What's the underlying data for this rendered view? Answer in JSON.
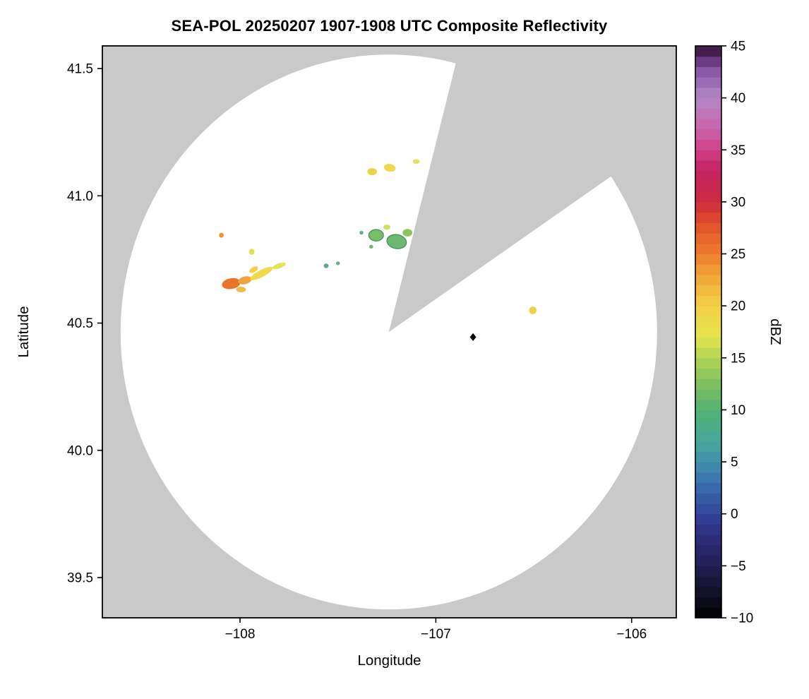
{
  "title": "SEA-POL 20250207 1907-1908 UTC Composite Reflectivity",
  "chart_data": {
    "type": "heatmap",
    "title": "SEA-POL 20250207 1907-1908 UTC Composite Reflectivity",
    "xlabel": "Longitude",
    "ylabel": "Latitude",
    "xlim": [
      -108.703,
      -105.772
    ],
    "ylim": [
      39.342,
      41.589
    ],
    "xticks": [
      -108,
      -107,
      -106
    ],
    "xtick_labels": [
      "−108",
      "−107",
      "−106"
    ],
    "yticks": [
      39.5,
      40.0,
      40.5,
      41.0,
      41.5
    ],
    "ytick_labels": [
      "39.5",
      "40.0",
      "40.5",
      "41.0",
      "41.5"
    ],
    "grid": false,
    "background_color": "#c9c9c9",
    "coverage": {
      "center_lon": -107.24,
      "center_lat": 40.465,
      "radius_lon_deg": 1.37,
      "radius_lat_deg": 1.09,
      "fill": "#ffffff"
    },
    "blocked_sector": {
      "start_azimuth_deg": 14,
      "end_azimuth_deg": 55,
      "fill": "#c9c9c9"
    },
    "radar_marker": {
      "lon": -106.81,
      "lat": 40.445,
      "symbol": "diamond",
      "color": "#000000"
    },
    "echoes": [
      {
        "lon": -108.045,
        "lat": 40.655,
        "w": 0.095,
        "h": 0.042,
        "dbz": 27,
        "color": "#e8742c",
        "rot": -10
      },
      {
        "lon": -107.975,
        "lat": 40.668,
        "w": 0.07,
        "h": 0.03,
        "dbz": 23,
        "color": "#f0a33a",
        "rot": -15
      },
      {
        "lon": -107.995,
        "lat": 40.632,
        "w": 0.05,
        "h": 0.022,
        "dbz": 21,
        "color": "#f2bc42",
        "rot": 0
      },
      {
        "lon": -107.89,
        "lat": 40.695,
        "w": 0.13,
        "h": 0.028,
        "dbz": 19,
        "color": "#f0d94c",
        "rot": -28
      },
      {
        "lon": -107.8,
        "lat": 40.725,
        "w": 0.07,
        "h": 0.02,
        "dbz": 17,
        "color": "#e4e455",
        "rot": -20
      },
      {
        "lon": -107.93,
        "lat": 40.71,
        "w": 0.05,
        "h": 0.02,
        "dbz": 20,
        "color": "#f4cf46",
        "rot": -30
      },
      {
        "lon": -108.095,
        "lat": 40.845,
        "w": 0.024,
        "h": 0.02,
        "dbz": 24,
        "color": "#ef9333",
        "rot": 0
      },
      {
        "lon": -107.94,
        "lat": 40.78,
        "w": 0.028,
        "h": 0.024,
        "dbz": 16,
        "color": "#e0e055",
        "rot": 0
      },
      {
        "lon": -107.56,
        "lat": 40.725,
        "w": 0.025,
        "h": 0.018,
        "dbz": 8,
        "color": "#55a98f",
        "rot": 0
      },
      {
        "lon": -107.5,
        "lat": 40.735,
        "w": 0.02,
        "h": 0.015,
        "dbz": 9,
        "color": "#63b184",
        "rot": 0
      },
      {
        "lon": -107.305,
        "lat": 40.845,
        "w": 0.075,
        "h": 0.045,
        "dbz": 11,
        "color": "#79bd69",
        "stroke": "#3e8e5a",
        "rot": 0
      },
      {
        "lon": -107.2,
        "lat": 40.82,
        "w": 0.1,
        "h": 0.055,
        "dbz": 12,
        "color": "#6cb86d",
        "stroke": "#3e8e5a",
        "rot": 10
      },
      {
        "lon": -107.145,
        "lat": 40.855,
        "w": 0.05,
        "h": 0.03,
        "dbz": 13,
        "color": "#8cc45f",
        "rot": 0
      },
      {
        "lon": -107.25,
        "lat": 40.877,
        "w": 0.035,
        "h": 0.02,
        "dbz": 15,
        "color": "#cfe05b",
        "rot": 0
      },
      {
        "lon": -107.38,
        "lat": 40.855,
        "w": 0.02,
        "h": 0.015,
        "dbz": 9,
        "color": "#5fae85",
        "rot": 0
      },
      {
        "lon": -107.33,
        "lat": 40.8,
        "w": 0.02,
        "h": 0.015,
        "dbz": 10,
        "color": "#6fb573",
        "rot": 0
      },
      {
        "lon": -107.325,
        "lat": 41.095,
        "w": 0.05,
        "h": 0.028,
        "dbz": 18,
        "color": "#ecd24a",
        "rot": 0
      },
      {
        "lon": -107.235,
        "lat": 41.11,
        "w": 0.06,
        "h": 0.03,
        "dbz": 18,
        "color": "#eed84e",
        "rot": 10
      },
      {
        "lon": -107.1,
        "lat": 41.135,
        "w": 0.035,
        "h": 0.018,
        "dbz": 16,
        "color": "#dde25c",
        "rot": 0
      },
      {
        "lon": -106.505,
        "lat": 40.55,
        "w": 0.038,
        "h": 0.03,
        "dbz": 18,
        "color": "#ecd149",
        "rot": 0
      }
    ],
    "colorbar": {
      "label": "dBZ",
      "min": -10,
      "max": 45,
      "ticks": [
        45,
        40,
        35,
        30,
        25,
        20,
        15,
        10,
        5,
        0,
        -5,
        -10
      ],
      "tick_labels": [
        "45",
        "40",
        "35",
        "30",
        "25",
        "20",
        "15",
        "10",
        "5",
        "0",
        "−5",
        "−10"
      ],
      "stops": [
        {
          "v": -10,
          "c": "#000000"
        },
        {
          "v": -7,
          "c": "#15142f"
        },
        {
          "v": -5,
          "c": "#221f55"
        },
        {
          "v": -2,
          "c": "#2e2d7e"
        },
        {
          "v": 0,
          "c": "#31459a"
        },
        {
          "v": 3,
          "c": "#3a6fae"
        },
        {
          "v": 5,
          "c": "#4090ad"
        },
        {
          "v": 7,
          "c": "#46a89a"
        },
        {
          "v": 10,
          "c": "#52b173"
        },
        {
          "v": 12,
          "c": "#74bc62"
        },
        {
          "v": 15,
          "c": "#b2d455"
        },
        {
          "v": 17,
          "c": "#e3e44e"
        },
        {
          "v": 20,
          "c": "#f3cf45"
        },
        {
          "v": 23,
          "c": "#f1a438"
        },
        {
          "v": 25,
          "c": "#ed7d2f"
        },
        {
          "v": 28,
          "c": "#e04e2b"
        },
        {
          "v": 30,
          "c": "#cd2b40"
        },
        {
          "v": 33,
          "c": "#c32261"
        },
        {
          "v": 35,
          "c": "#cf3f88"
        },
        {
          "v": 37,
          "c": "#ca63a9"
        },
        {
          "v": 40,
          "c": "#b388c6"
        },
        {
          "v": 42.5,
          "c": "#8a5aa6"
        },
        {
          "v": 44,
          "c": "#5c2d6e"
        },
        {
          "v": 45,
          "c": "#2c102e"
        }
      ]
    }
  }
}
